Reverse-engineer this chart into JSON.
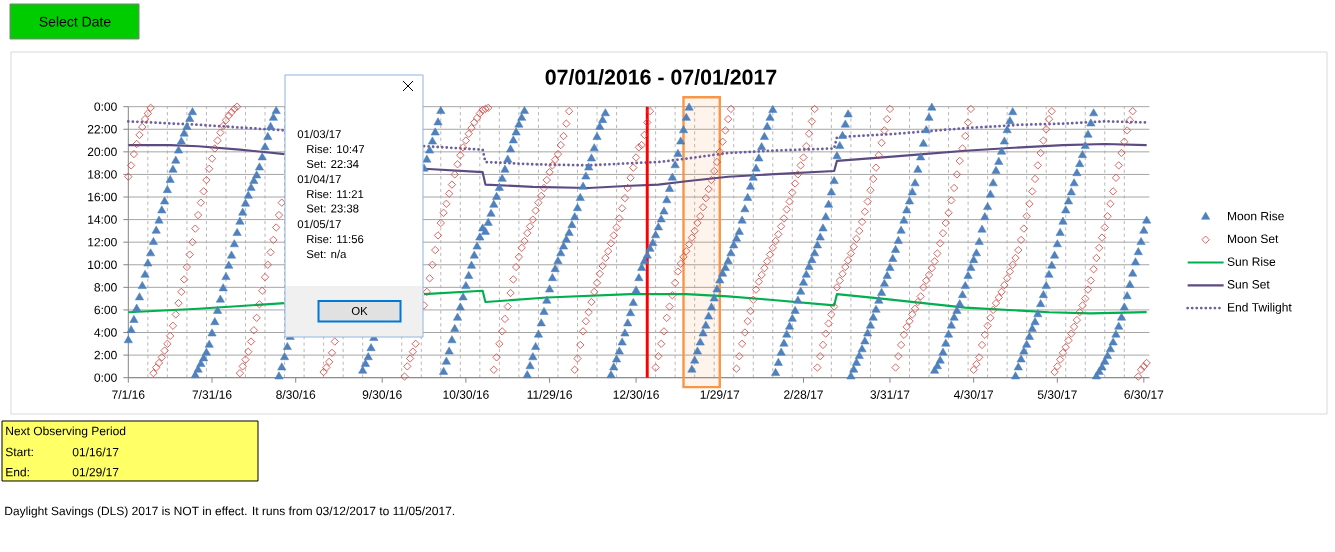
{
  "chart_data": {
    "type": "scatter",
    "title": "07/01/2016 - 07/01/2017",
    "x": [
      "2016-07-01",
      "2016-07-02",
      "2016-07-03",
      "2016-07-04",
      "2016-07-05",
      "2016-07-06",
      "2016-07-07",
      "2016-07-08",
      "2016-07-09",
      "2016-07-10",
      "2016-07-11",
      "2016-07-12",
      "2016-07-13",
      "2016-07-14",
      "2016-07-15",
      "2016-07-16",
      "2016-07-17",
      "2016-07-18",
      "2016-07-19",
      "2016-07-20",
      "2016-07-21",
      "2016-07-22",
      "2016-07-23",
      "2016-07-24",
      "2016-07-25",
      "2016-07-26",
      "2016-07-27",
      "2016-07-28",
      "2016-07-29",
      "2016-07-30",
      "2016-07-31",
      "2016-08-01",
      "2016-08-02",
      "2016-08-03",
      "2016-08-04",
      "2016-08-05",
      "2016-08-06",
      "2016-08-07",
      "2016-08-08",
      "2016-08-09",
      "2016-08-10",
      "2016-08-11",
      "2016-08-12",
      "2016-08-13",
      "2016-08-14",
      "2016-08-15",
      "2016-08-16",
      "2016-08-17",
      "2016-08-18",
      "2016-08-19",
      "2016-08-20",
      "2016-08-21",
      "2016-08-22",
      "2016-08-23",
      "2016-08-24",
      "2016-08-25",
      "2016-08-26",
      "2016-08-27",
      "2016-08-28",
      "2016-08-29",
      "2016-08-30",
      "2016-08-31",
      "2016-09-01",
      "2016-09-02",
      "2016-09-03",
      "2016-09-04",
      "2016-09-05",
      "2016-09-06",
      "2016-09-07",
      "2016-09-08",
      "2016-09-09",
      "2016-09-10",
      "2016-09-11",
      "2016-09-12",
      "2016-09-13",
      "2016-09-14",
      "2016-09-15",
      "2016-09-16",
      "2016-09-17",
      "2016-09-18",
      "2016-09-19",
      "2016-09-20",
      "2016-09-21",
      "2016-09-22",
      "2016-09-23",
      "2016-09-24",
      "2016-09-25",
      "2016-09-26",
      "2016-09-27",
      "2016-09-28",
      "2016-09-29",
      "2016-09-30",
      "2016-10-01",
      "2016-10-02",
      "2016-10-03",
      "2016-10-04",
      "2016-10-05",
      "2016-10-06",
      "2016-10-07",
      "2016-10-08",
      "2016-10-09",
      "2016-10-10",
      "2016-10-11",
      "2016-10-12",
      "2016-10-13",
      "2016-10-14",
      "2016-10-15",
      "2016-10-16",
      "2016-10-17",
      "2016-10-18",
      "2016-10-19",
      "2016-10-20",
      "2016-10-21",
      "2016-10-22",
      "2016-10-23",
      "2016-10-24",
      "2016-10-25",
      "2016-10-26",
      "2016-10-27",
      "2016-10-28",
      "2016-10-29",
      "2016-10-30",
      "2016-10-31",
      "2016-11-01",
      "2016-11-02",
      "2016-11-03",
      "2016-11-04",
      "2016-11-05",
      "2016-11-06",
      "2016-11-07",
      "2016-11-08",
      "2016-11-09",
      "2016-11-10",
      "2016-11-11",
      "2016-11-12",
      "2016-11-13",
      "2016-11-14",
      "2016-11-15",
      "2016-11-16",
      "2016-11-17",
      "2016-11-18",
      "2016-11-19",
      "2016-11-20",
      "2016-11-21",
      "2016-11-22",
      "2016-11-23",
      "2016-11-24",
      "2016-11-25",
      "2016-11-26",
      "2016-11-27",
      "2016-11-28",
      "2016-11-29",
      "2016-11-30",
      "2016-12-01",
      "2016-12-02",
      "2016-12-03",
      "2016-12-04",
      "2016-12-05",
      "2016-12-06",
      "2016-12-07",
      "2016-12-08",
      "2016-12-09",
      "2016-12-10",
      "2016-12-11",
      "2016-12-12",
      "2016-12-13",
      "2016-12-14",
      "2016-12-15",
      "2016-12-16",
      "2016-12-17",
      "2016-12-18",
      "2016-12-19",
      "2016-12-20",
      "2016-12-21",
      "2016-12-22",
      "2016-12-23",
      "2016-12-24",
      "2016-12-25",
      "2016-12-26",
      "2016-12-27",
      "2016-12-28",
      "2016-12-29",
      "2016-12-30",
      "2016-12-31",
      "2017-01-01",
      "2017-01-02",
      "2017-01-03",
      "2017-01-04",
      "2017-01-05",
      "2017-01-06",
      "2017-01-07",
      "2017-01-08",
      "2017-01-09",
      "2017-01-10",
      "2017-01-11",
      "2017-01-12",
      "2017-01-13",
      "2017-01-14",
      "2017-01-15",
      "2017-01-16",
      "2017-01-17",
      "2017-01-18",
      "2017-01-19",
      "2017-01-20",
      "2017-01-21",
      "2017-01-22",
      "2017-01-23",
      "2017-01-24",
      "2017-01-25",
      "2017-01-26",
      "2017-01-27",
      "2017-01-28",
      "2017-01-29",
      "2017-01-30",
      "2017-01-31",
      "2017-02-01",
      "2017-02-02",
      "2017-02-03",
      "2017-02-04",
      "2017-02-05",
      "2017-02-06",
      "2017-02-07",
      "2017-02-08",
      "2017-02-09",
      "2017-02-10",
      "2017-02-11",
      "2017-02-12",
      "2017-02-13",
      "2017-02-14",
      "2017-02-15",
      "2017-02-16",
      "2017-02-17",
      "2017-02-18",
      "2017-02-19",
      "2017-02-20",
      "2017-02-21",
      "2017-02-22",
      "2017-02-23",
      "2017-02-24",
      "2017-02-25",
      "2017-02-26",
      "2017-02-27",
      "2017-02-28",
      "2017-03-01",
      "2017-03-02",
      "2017-03-03",
      "2017-03-04",
      "2017-03-05",
      "2017-03-06",
      "2017-03-07",
      "2017-03-08",
      "2017-03-09",
      "2017-03-10",
      "2017-03-11",
      "2017-03-12",
      "2017-03-13",
      "2017-03-14",
      "2017-03-15",
      "2017-03-16",
      "2017-03-17",
      "2017-03-18",
      "2017-03-19",
      "2017-03-20",
      "2017-03-21",
      "2017-03-22",
      "2017-03-23",
      "2017-03-24",
      "2017-03-25",
      "2017-03-26",
      "2017-03-27",
      "2017-03-28",
      "2017-03-29",
      "2017-03-30",
      "2017-03-31",
      "2017-04-01",
      "2017-04-02",
      "2017-04-03",
      "2017-04-04",
      "2017-04-05",
      "2017-04-06",
      "2017-04-07",
      "2017-04-08",
      "2017-04-09",
      "2017-04-10",
      "2017-04-11",
      "2017-04-12",
      "2017-04-13",
      "2017-04-14",
      "2017-04-15",
      "2017-04-16",
      "2017-04-17",
      "2017-04-18",
      "2017-04-19",
      "2017-04-20",
      "2017-04-21",
      "2017-04-22",
      "2017-04-23",
      "2017-04-24",
      "2017-04-25",
      "2017-04-26",
      "2017-04-27",
      "2017-04-28",
      "2017-04-29",
      "2017-04-30",
      "2017-05-01",
      "2017-05-02",
      "2017-05-03",
      "2017-05-04",
      "2017-05-05",
      "2017-05-06",
      "2017-05-07",
      "2017-05-08",
      "2017-05-09",
      "2017-05-10",
      "2017-05-11",
      "2017-05-12",
      "2017-05-13",
      "2017-05-14",
      "2017-05-15",
      "2017-05-16",
      "2017-05-17",
      "2017-05-18",
      "2017-05-19",
      "2017-05-20",
      "2017-05-21",
      "2017-05-22",
      "2017-05-23",
      "2017-05-24",
      "2017-05-25",
      "2017-05-26",
      "2017-05-27",
      "2017-05-28",
      "2017-05-29",
      "2017-05-30",
      "2017-05-31",
      "2017-06-01",
      "2017-06-02",
      "2017-06-03",
      "2017-06-04",
      "2017-06-05",
      "2017-06-06",
      "2017-06-07",
      "2017-06-08",
      "2017-06-09",
      "2017-06-10",
      "2017-06-11",
      "2017-06-12",
      "2017-06-13",
      "2017-06-14",
      "2017-06-15",
      "2017-06-16",
      "2017-06-17",
      "2017-06-18",
      "2017-06-19",
      "2017-06-20",
      "2017-06-21",
      "2017-06-22",
      "2017-06-23",
      "2017-06-24",
      "2017-06-25",
      "2017-06-26",
      "2017-06-27",
      "2017-06-28",
      "2017-06-29",
      "2017-06-30",
      "2017-07-01"
    ],
    "xlim": [
      "2016-07-01",
      "2017-07-02"
    ],
    "xticks": [
      {
        "value": "2016-07-01",
        "label": "7/1/16"
      },
      {
        "value": "2016-07-31",
        "label": "7/31/16"
      },
      {
        "value": "2016-08-30",
        "label": "8/30/16"
      },
      {
        "value": "2016-09-30",
        "label": "9/30/16"
      },
      {
        "value": "2016-10-30",
        "label": "10/30/16"
      },
      {
        "value": "2016-11-29",
        "label": "11/29/16"
      },
      {
        "value": "2016-12-30",
        "label": "12/30/16"
      },
      {
        "value": "2017-01-29",
        "label": "1/29/17"
      },
      {
        "value": "2017-02-28",
        "label": "2/28/17"
      },
      {
        "value": "2017-03-31",
        "label": "3/31/17"
      },
      {
        "value": "2017-04-30",
        "label": "4/30/17"
      },
      {
        "value": "2017-05-30",
        "label": "5/30/17"
      },
      {
        "value": "2017-06-30",
        "label": "6/30/17"
      },
      {
        "value": "2016-07-08",
        "label": null
      },
      {
        "value": "2016-07-15",
        "label": null
      },
      {
        "value": "2016-07-22",
        "label": null
      },
      {
        "value": "2016-07-29",
        "label": null
      },
      {
        "value": "2016-08-05",
        "label": null
      },
      {
        "value": "2016-08-12",
        "label": null
      },
      {
        "value": "2016-08-19",
        "label": null
      },
      {
        "value": "2016-08-26",
        "label": null
      },
      {
        "value": "2016-09-02",
        "label": null
      },
      {
        "value": "2016-09-09",
        "label": null
      },
      {
        "value": "2016-09-16",
        "label": null
      },
      {
        "value": "2016-09-23",
        "label": null
      },
      {
        "value": "2016-10-07",
        "label": null
      },
      {
        "value": "2016-10-14",
        "label": null
      },
      {
        "value": "2016-10-21",
        "label": null
      },
      {
        "value": "2016-10-28",
        "label": null
      },
      {
        "value": "2016-11-04",
        "label": null
      },
      {
        "value": "2016-11-11",
        "label": null
      },
      {
        "value": "2016-11-18",
        "label": null
      },
      {
        "value": "2016-11-25",
        "label": null
      },
      {
        "value": "2016-12-02",
        "label": null
      },
      {
        "value": "2016-12-09",
        "label": null
      },
      {
        "value": "2016-12-16",
        "label": null
      },
      {
        "value": "2016-12-23",
        "label": null
      },
      {
        "value": "2017-01-06",
        "label": null
      },
      {
        "value": "2017-01-13",
        "label": null
      },
      {
        "value": "2017-01-20",
        "label": null
      },
      {
        "value": "2017-01-27",
        "label": null
      },
      {
        "value": "2017-02-03",
        "label": null
      },
      {
        "value": "2017-02-10",
        "label": null
      },
      {
        "value": "2017-02-17",
        "label": null
      },
      {
        "value": "2017-02-24",
        "label": null
      },
      {
        "value": "2017-03-03",
        "label": null
      },
      {
        "value": "2017-03-10",
        "label": null
      },
      {
        "value": "2017-03-17",
        "label": null
      },
      {
        "value": "2017-03-24",
        "label": null
      },
      {
        "value": "2017-04-07",
        "label": null
      },
      {
        "value": "2017-04-14",
        "label": null
      },
      {
        "value": "2017-04-21",
        "label": null
      },
      {
        "value": "2017-04-28",
        "label": null
      },
      {
        "value": "2017-05-05",
        "label": null
      },
      {
        "value": "2017-05-12",
        "label": null
      },
      {
        "value": "2017-05-19",
        "label": null
      },
      {
        "value": "2017-05-26",
        "label": null
      },
      {
        "value": "2017-06-02",
        "label": null
      },
      {
        "value": "2017-06-09",
        "label": null
      },
      {
        "value": "2017-06-16",
        "label": null
      },
      {
        "value": "2017-06-23",
        "label": null
      }
    ],
    "ylim": [
      0,
      24
    ],
    "yticks": [
      {
        "value": 0,
        "label": "0:00"
      },
      {
        "value": 2,
        "label": "2:00"
      },
      {
        "value": 4,
        "label": "4:00"
      },
      {
        "value": 6,
        "label": "6:00"
      },
      {
        "value": 8,
        "label": "8:00"
      },
      {
        "value": 10,
        "label": "10:00"
      },
      {
        "value": 12,
        "label": "12:00"
      },
      {
        "value": 14,
        "label": "14:00"
      },
      {
        "value": 16,
        "label": "16:00"
      },
      {
        "value": 18,
        "label": "18:00"
      },
      {
        "value": 20,
        "label": "20:00"
      },
      {
        "value": 22,
        "label": "22:00"
      },
      {
        "value": 24,
        "label": "0:00"
      }
    ],
    "grid": true,
    "legend": "right",
    "series": [
      {
        "name": "Moon Rise",
        "marker": "triangle",
        "color": "#4F81BD",
        "values": [
          3.3,
          4.2,
          5.1,
          6.1,
          7.1,
          8.1,
          9.1,
          10.1,
          11.0,
          12.0,
          13.0,
          13.9,
          14.8,
          15.6,
          16.6,
          17.5,
          18.4,
          19.2,
          20.1,
          20.9,
          21.6,
          22.2,
          22.9,
          23.5,
          0.2,
          0.7,
          1.2,
          1.7,
          2.2,
          2.9,
          3.9,
          4.9,
          5.9,
          6.9,
          7.9,
          8.9,
          9.9,
          10.8,
          11.8,
          12.8,
          13.8,
          14.6,
          15.4,
          16.1,
          16.8,
          17.4,
          17.9,
          18.6,
          19.5,
          20.4,
          21.3,
          22.2,
          23.0,
          23.6,
          0.1,
          0.9,
          1.8,
          2.7,
          3.6,
          null,
          null,
          null,
          null,
          null,
          null,
          null,
          null,
          null,
          null,
          null,
          null,
          null,
          null,
          null,
          null,
          null,
          null,
          null,
          null,
          null,
          null,
          null,
          null,
          null,
          0.6,
          1.2,
          1.8,
          2.6,
          3.5,
          null,
          null,
          null,
          null,
          null,
          null,
          null,
          null,
          null,
          null,
          null,
          null,
          null,
          null,
          null,
          null,
          null,
          18.5,
          19.3,
          20.1,
          20.9,
          21.7,
          22.6,
          23.6,
          0.5,
          1.4,
          2.3,
          3.3,
          4.3,
          5.3,
          6.2,
          7.1,
          8.1,
          9.0,
          9.9,
          10.8,
          11.6,
          12.4,
          13.2,
          12.9,
          13.7,
          14.5,
          15.3,
          16.0,
          16.8,
          17.6,
          18.4,
          19.3,
          20.2,
          21.0,
          21.7,
          22.4,
          23.0,
          23.6,
          0.2,
          1.0,
          1.8,
          2.7,
          3.8,
          4.8,
          5.8,
          6.8,
          7.8,
          8.8,
          9.6,
          10.3,
          11.0,
          11.6,
          12.2,
          12.8,
          13.5,
          14.2,
          15.0,
          15.9,
          16.9,
          17.8,
          18.6,
          19.4,
          20.3,
          21.3,
          22.2,
          22.8,
          23.4,
          null,
          0.2,
          0.9,
          1.6,
          2.3,
          3.1,
          3.9,
          4.8,
          5.7,
          6.6,
          7.7,
          8.8,
          9.7,
          10.3,
          10.8,
          11.4,
          11.9,
          12.6,
          13.3,
          14.0,
          14.7,
          15.7,
          16.7,
          17.7,
          18.8,
          19.8,
          20.9,
          21.9,
          23.0,
          23.9,
          0.7,
          1.5,
          2.3,
          3.1,
          3.9,
          4.6,
          5.4,
          6.2,
          7.0,
          7.8,
          8.6,
          9.2,
          9.7,
          10.3,
          11.0,
          11.7,
          12.3,
          12.9,
          13.9,
          14.9,
          15.9,
          16.9,
          17.7,
          18.5,
          19.4,
          20.4,
          21.3,
          22.2,
          23.0,
          23.7,
          0.4,
          1.3,
          2.2,
          3.0,
          3.8,
          4.5,
          5.2,
          5.9,
          6.8,
          7.6,
          8.4,
          9.1,
          9.8,
          10.4,
          11.0,
          11.7,
          12.4,
          13.2,
          14.2,
          15.3,
          16.4,
          17.4,
          19.6,
          20.5,
          21.4,
          22.4,
          23.3,
          0.1,
          0.7,
          1.3,
          1.9,
          2.5,
          3.2,
          3.9,
          4.6,
          5.3,
          6.0,
          6.8,
          7.5,
          8.3,
          9.0,
          9.7,
          10.5,
          11.3,
          12.1,
          13.0,
          13.9,
          14.8,
          15.6,
          16.4,
          17.2,
          18.4,
          19.5,
          20.7,
          21.9,
          23.0,
          23.9,
          0.6,
          1.0,
          1.5,
          2.2,
          3.0,
          3.8,
          4.6,
          5.3,
          5.9,
          6.5,
          7.3,
          8.1,
          9.0,
          9.7,
          10.4,
          11.0,
          12.0,
          13.1,
          14.2,
          15.1,
          16.2,
          17.2,
          18.3,
          19.1,
          20.0,
          20.9,
          21.9,
          22.7,
          23.5,
          0.1,
          0.9,
          1.6,
          2.3,
          2.9,
          3.6,
          4.3,
          4.9,
          5.6,
          6.5,
          7.3,
          8.1,
          9.1,
          9.9,
          10.8,
          11.8,
          12.8,
          13.8,
          14.8,
          15.6,
          16.4,
          17.2,
          18.1,
          18.9,
          19.7,
          20.5,
          21.5,
          22.5,
          23.4,
          0.1,
          0.5,
          0.9,
          1.4,
          1.9,
          2.5,
          3.1,
          3.8,
          4.5,
          5.3,
          6.2,
          7.2,
          8.2,
          9.2,
          10.2,
          11.1,
          12.0,
          13.0,
          13.9
        ]
      },
      {
        "name": "Moon Set",
        "marker": "diamond",
        "color": "#D0403C",
        "values": [
          17.8,
          18.8,
          19.8,
          20.7,
          21.5,
          22.2,
          22.9,
          23.4,
          23.9,
          0.4,
          0.9,
          1.3,
          1.8,
          2.4,
          3.0,
          3.7,
          4.6,
          5.6,
          6.6,
          7.6,
          8.7,
          9.8,
          10.9,
          12.0,
          13.2,
          14.4,
          15.5,
          16.5,
          17.5,
          18.5,
          19.4,
          20.3,
          21.0,
          21.7,
          22.3,
          22.8,
          23.2,
          23.5,
          23.8,
          24.0,
          0.4,
          1.0,
          1.6,
          2.3,
          3.2,
          4.2,
          5.3,
          6.5,
          7.7,
          8.9,
          10.0,
          11.1,
          12.2,
          13.3,
          14.4,
          15.5,
          null,
          null,
          null,
          null,
          null,
          null,
          null,
          null,
          null,
          null,
          null,
          null,
          null,
          null,
          0.5,
          0.9,
          1.4,
          2.2,
          3.2,
          null,
          null,
          null,
          null,
          null,
          null,
          null,
          null,
          null,
          null,
          null,
          null,
          null,
          null,
          null,
          null,
          null,
          null,
          null,
          null,
          null,
          null,
          null,
          null,
          0.1,
          1.0,
          1.7,
          2.3,
          3.0,
          null,
          null,
          6.4,
          7.6,
          8.8,
          10.0,
          11.3,
          12.6,
          13.7,
          14.6,
          15.4,
          16.3,
          17.1,
          18.0,
          18.9,
          19.7,
          20.4,
          21.0,
          21.6,
          22.1,
          22.6,
          23.0,
          23.4,
          23.7,
          23.8,
          23.9,
          null,
          0.7,
          1.8,
          3.0,
          4.1,
          5.2,
          6.3,
          7.5,
          8.7,
          9.8,
          10.7,
          11.5,
          12.1,
          12.8,
          13.4,
          14.0,
          14.8,
          15.5,
          16.1,
          16.8,
          17.5,
          18.2,
          18.8,
          19.3,
          19.8,
          20.6,
          21.4,
          22.5,
          23.6,
          null,
          0.7,
          1.7,
          2.9,
          4.1,
          5.0,
          5.8,
          6.7,
          7.6,
          8.4,
          9.2,
          9.9,
          10.6,
          11.2,
          11.9,
          12.6,
          13.3,
          14.1,
          15.0,
          15.9,
          16.8,
          17.7,
          18.6,
          19.5,
          20.4,
          20.6,
          21.5,
          22.6,
          23.6,
          null,
          0.9,
          1.9,
          3.0,
          4.1,
          5.3,
          6.3,
          7.3,
          8.4,
          9.4,
          10.1,
          10.7,
          11.2,
          11.8,
          12.4,
          13.0,
          13.7,
          14.3,
          15.1,
          15.9,
          16.7,
          17.5,
          18.3,
          19.1,
          20.0,
          20.9,
          21.9,
          22.9,
          23.8,
          null,
          0.8,
          1.9,
          3.0,
          4.0,
          5.0,
          5.9,
          6.9,
          7.8,
          8.5,
          9.1,
          9.7,
          10.3,
          10.9,
          11.5,
          12.1,
          12.7,
          13.4,
          14.1,
          14.9,
          15.6,
          16.4,
          17.2,
          18.0,
          18.8,
          19.5,
          20.5,
          21.6,
          22.7,
          23.8,
          0.9,
          1.9,
          2.9,
          3.9,
          4.8,
          5.6,
          6.3,
          8.0,
          8.6,
          9.2,
          9.8,
          10.4,
          11.0,
          11.6,
          12.3,
          13.0,
          13.8,
          14.7,
          15.6,
          16.6,
          17.6,
          18.6,
          19.7,
          20.8,
          21.9,
          22.9,
          23.8,
          null,
          0.9,
          1.9,
          2.9,
          3.8,
          4.5,
          5.0,
          5.6,
          6.1,
          6.7,
          7.2,
          8.0,
          8.6,
          9.1,
          9.7,
          10.3,
          11.0,
          11.9,
          12.8,
          13.7,
          14.6,
          15.7,
          16.8,
          18.0,
          19.2,
          20.3,
          21.4,
          22.6,
          23.8,
          0.7,
          1.2,
          1.8,
          2.9,
          3.8,
          4.6,
          5.3,
          6.0,
          6.6,
          7.1,
          7.6,
          8.2,
          8.8,
          9.4,
          10.0,
          10.6,
          11.3,
          12.2,
          13.2,
          14.3,
          15.4,
          16.5,
          17.6,
          18.8,
          19.9,
          21.0,
          22.0,
          22.9,
          23.6,
          0.5,
          1.0,
          1.6,
          2.2,
          2.7,
          3.3,
          3.9,
          4.5,
          5.1,
          5.8,
          6.4,
          7.0,
          7.8,
          8.6,
          9.6,
          10.6,
          11.5,
          12.4,
          13.3,
          14.3,
          15.4,
          16.5,
          17.7,
          18.8,
          19.9,
          20.9,
          21.9,
          22.8,
          23.6,
          null,
          0.1,
          0.7,
          1.0,
          1.3
        ]
      },
      {
        "name": "Sun Rise",
        "type": "line",
        "marker": "none",
        "line_style": "solid",
        "color": "#00B050",
        "x": [
          "2016-07-01",
          "2016-07-26",
          "2016-08-26",
          "2016-09-19",
          "2016-10-15",
          "2016-11-05",
          "2016-11-06",
          "2016-11-28",
          "2016-12-28",
          "2017-01-17",
          "2017-02-01",
          "2017-02-16",
          "2017-03-11",
          "2017-03-12",
          "2017-03-28",
          "2017-04-12",
          "2017-04-27",
          "2017-05-12",
          "2017-05-27",
          "2017-06-11",
          "2017-07-01"
        ],
        "values": [
          5.8,
          6.1,
          6.6,
          null,
          7.4,
          7.7,
          6.7,
          7.1,
          7.4,
          7.4,
          7.2,
          6.9,
          6.4,
          7.4,
          7.0,
          6.6,
          6.2,
          6.0,
          5.8,
          5.7,
          5.8
        ]
      },
      {
        "name": "Sun Set",
        "type": "line",
        "marker": "none",
        "line_style": "solid",
        "color": "#5C4A82",
        "x": [
          "2016-07-01",
          "2016-07-16",
          "2016-07-26",
          "2016-08-10",
          "2016-08-26",
          "2016-09-19",
          "2016-10-15",
          "2016-11-05",
          "2016-11-06",
          "2016-11-23",
          "2016-12-13",
          "2016-12-28",
          "2017-01-07",
          "2017-01-17",
          "2017-02-01",
          "2017-02-16",
          "2017-03-11",
          "2017-03-12",
          "2017-04-02",
          "2017-04-12",
          "2017-04-27",
          "2017-05-17",
          "2017-06-01",
          "2017-06-16",
          "2017-07-01"
        ],
        "values": [
          20.6,
          20.6,
          20.5,
          20.2,
          19.8,
          null,
          18.5,
          18.2,
          17.1,
          16.9,
          16.8,
          17.0,
          17.1,
          17.4,
          17.8,
          18.0,
          18.3,
          19.2,
          19.6,
          19.8,
          20.1,
          20.4,
          20.6,
          20.7,
          20.6
        ]
      },
      {
        "name": "End Twilight",
        "type": "line",
        "marker": "none",
        "line_style": "dotted",
        "color": "#6E5FA0",
        "x": [
          "2016-07-01",
          "2016-07-26",
          "2016-08-26",
          "2016-09-19",
          "2016-10-15",
          "2016-11-05",
          "2016-11-06",
          "2016-11-23",
          "2016-12-13",
          "2016-12-28",
          "2017-01-07",
          "2017-01-17",
          "2017-02-01",
          "2017-02-16",
          "2017-03-11",
          "2017-03-12",
          "2017-04-02",
          "2017-04-12",
          "2017-04-27",
          "2017-05-17",
          "2017-06-01",
          "2017-06-16",
          "2017-07-01"
        ],
        "values": [
          22.7,
          22.4,
          21.9,
          null,
          20.5,
          20.2,
          19.1,
          18.9,
          18.8,
          19.0,
          19.1,
          19.4,
          19.9,
          20.1,
          20.3,
          21.3,
          21.6,
          21.8,
          22.1,
          22.4,
          22.5,
          22.7,
          22.6
        ]
      }
    ],
    "ref_lines": [
      {
        "axis": "x",
        "value": "2017-01-03",
        "color": "#FF0000"
      }
    ],
    "bands": [
      {
        "axis": "x",
        "from": "2017-01-16",
        "to": "2017-01-29",
        "color": "#F79646"
      }
    ],
    "annotations": [
      "Select Date",
      "01/03/17",
      "Rise:  10:47",
      "Set:  22:34",
      "01/04/17",
      "Rise:  11:21",
      "Set:  23:38",
      "01/05/17",
      "Rise:  11:56",
      "Set:  n/a",
      "OK",
      "Next Observing Period",
      "Start:",
      "01/16/17",
      "End:",
      "01/29/17",
      "Daylight Savings (DLS) 2017 is NOT  in effect.  It runs from 03/12/2017 to 11/05/2017."
    ]
  }
}
